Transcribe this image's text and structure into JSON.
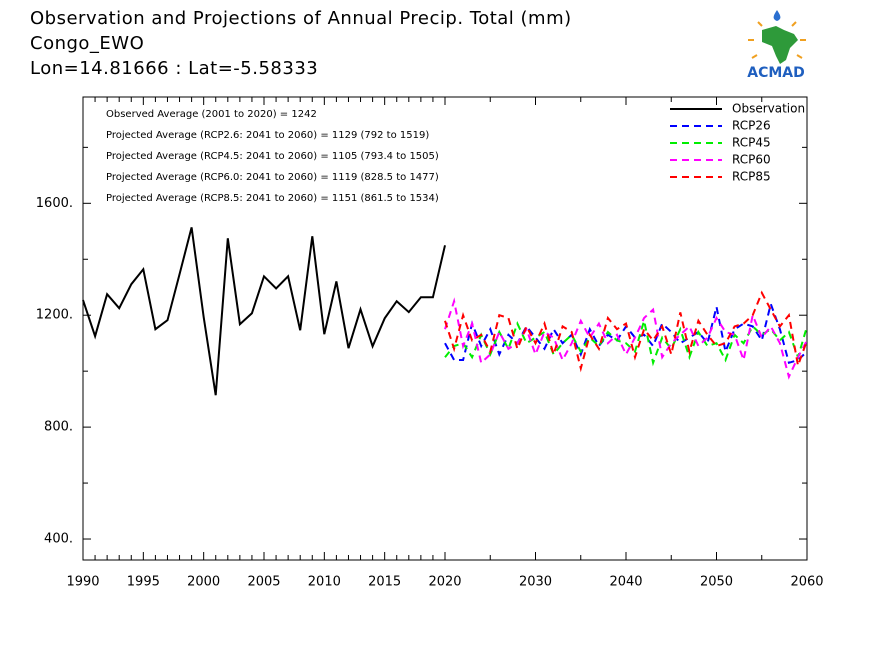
{
  "chart_data": {
    "type": "line",
    "title": [
      "Observation and Projections of Annual Precip. Total (mm)",
      "Congo_EWO",
      "Lon=14.81666 : Lat=-5.58333"
    ],
    "logo_text": "ACMAD",
    "annotations": [
      "Observed Average (2001 to 2020) = 1242",
      "Projected Average (RCP2.6: 2041 to 2060) = 1129 (792 to 1519)",
      "Projected Average (RCP4.5: 2041 to 2060) = 1105 (793.4 to 1505)",
      "Projected Average (RCP6.0: 2041 to 2060) = 1119 (828.5 to 1477)",
      "Projected Average (RCP8.5: 2041 to 2060) = 1151 (861.5 to 1534)"
    ],
    "xlim": [
      1990,
      2060
    ],
    "xticks": [
      1990,
      1995,
      2000,
      2005,
      2010,
      2015,
      2020,
      2030,
      2040,
      2050,
      2060
    ],
    "xminor": [
      1991,
      1992,
      1993,
      1994,
      1996,
      1997,
      1998,
      1999,
      2001,
      2002,
      2003,
      2004,
      2006,
      2007,
      2008,
      2009,
      2011,
      2012,
      2013,
      2014,
      2016,
      2017,
      2018,
      2019,
      2025,
      2035,
      2045,
      2055
    ],
    "ylim": [
      325,
      1980
    ],
    "yticks": [
      {
        "value": 400,
        "label": "400."
      },
      {
        "value": 800,
        "label": "800."
      },
      {
        "value": 1200,
        "label": "1200."
      },
      {
        "value": 1600,
        "label": "1600."
      }
    ],
    "yminor": [
      600,
      1000,
      1400,
      1800
    ],
    "legend": "top-right",
    "series": [
      {
        "name": "Observation",
        "color": "#000000",
        "dashed": false,
        "x": [
          1990,
          1991,
          1992,
          1993,
          1994,
          1995,
          1996,
          1997,
          1998,
          1999,
          2000,
          2001,
          2002,
          2003,
          2004,
          2005,
          2006,
          2007,
          2008,
          2009,
          2010,
          2011,
          2012,
          2013,
          2014,
          2015,
          2016,
          2017,
          2018,
          2019,
          2020
        ],
        "values": [
          1254,
          1125,
          1275,
          1225,
          1311,
          1364,
          1150,
          1182,
          1346,
          1514,
          1193,
          914,
          1475,
          1168,
          1207,
          1339,
          1296,
          1339,
          1146,
          1482,
          1132,
          1321,
          1082,
          1221,
          1089,
          1189,
          1250,
          1211,
          1264,
          1264,
          1450
        ]
      },
      {
        "name": "RCP26",
        "color": "#0000ff",
        "dashed": true,
        "x": [
          2020,
          2021,
          2022,
          2023,
          2024,
          2025,
          2026,
          2027,
          2028,
          2029,
          2030,
          2031,
          2032,
          2033,
          2034,
          2035,
          2036,
          2037,
          2038,
          2039,
          2040,
          2041,
          2042,
          2043,
          2044,
          2045,
          2046,
          2047,
          2048,
          2049,
          2050,
          2051,
          2052,
          2053,
          2054,
          2055,
          2056,
          2057,
          2058,
          2059,
          2060
        ],
        "values": [
          1100,
          1040,
          1040,
          1170,
          1090,
          1150,
          1060,
          1130,
          1100,
          1160,
          1120,
          1080,
          1150,
          1100,
          1130,
          1060,
          1150,
          1090,
          1130,
          1110,
          1160,
          1120,
          1130,
          1090,
          1170,
          1140,
          1100,
          1120,
          1140,
          1100,
          1230,
          1070,
          1150,
          1170,
          1160,
          1110,
          1240,
          1150,
          1030,
          1040,
          1070
        ]
      },
      {
        "name": "RCP45",
        "color": "#00ee00",
        "dashed": true,
        "x": [
          2020,
          2021,
          2022,
          2023,
          2024,
          2025,
          2026,
          2027,
          2028,
          2029,
          2030,
          2031,
          2032,
          2033,
          2034,
          2035,
          2036,
          2037,
          2038,
          2039,
          2040,
          2041,
          2042,
          2043,
          2044,
          2045,
          2046,
          2047,
          2048,
          2049,
          2050,
          2051,
          2052,
          2053,
          2054,
          2055,
          2056,
          2057,
          2058,
          2059,
          2060
        ],
        "values": [
          1050,
          1090,
          1100,
          1050,
          1130,
          1060,
          1140,
          1080,
          1170,
          1100,
          1120,
          1140,
          1060,
          1100,
          1130,
          1070,
          1120,
          1090,
          1140,
          1110,
          1100,
          1070,
          1180,
          1030,
          1120,
          1080,
          1150,
          1050,
          1140,
          1090,
          1100,
          1040,
          1130,
          1100,
          1160,
          1130,
          1150,
          1110,
          1140,
          1050,
          1160
        ]
      },
      {
        "name": "RCP60",
        "color": "#ff00ff",
        "dashed": true,
        "x": [
          2020,
          2021,
          2022,
          2023,
          2024,
          2025,
          2026,
          2027,
          2028,
          2029,
          2030,
          2031,
          2032,
          2033,
          2034,
          2035,
          2036,
          2037,
          2038,
          2039,
          2040,
          2041,
          2042,
          2043,
          2044,
          2045,
          2046,
          2047,
          2048,
          2049,
          2050,
          2051,
          2052,
          2053,
          2054,
          2055,
          2056,
          2057,
          2058,
          2059,
          2060
        ],
        "values": [
          1150,
          1250,
          1090,
          1170,
          1030,
          1060,
          1140,
          1080,
          1100,
          1150,
          1060,
          1140,
          1120,
          1040,
          1100,
          1180,
          1120,
          1170,
          1100,
          1130,
          1060,
          1120,
          1190,
          1220,
          1050,
          1100,
          1130,
          1160,
          1090,
          1120,
          1190,
          1140,
          1130,
          1040,
          1200,
          1120,
          1160,
          1100,
          980,
          1050,
          1110
        ]
      },
      {
        "name": "RCP85",
        "color": "#ff0000",
        "dashed": true,
        "x": [
          2020,
          2021,
          2022,
          2023,
          2024,
          2025,
          2026,
          2027,
          2028,
          2029,
          2030,
          2031,
          2032,
          2033,
          2034,
          2035,
          2036,
          2037,
          2038,
          2039,
          2040,
          2041,
          2042,
          2043,
          2044,
          2045,
          2046,
          2047,
          2048,
          2049,
          2050,
          2051,
          2052,
          2053,
          2054,
          2055,
          2056,
          2057,
          2058,
          2059,
          2060
        ],
        "values": [
          1180,
          1080,
          1200,
          1110,
          1130,
          1070,
          1200,
          1190,
          1080,
          1160,
          1100,
          1170,
          1060,
          1160,
          1140,
          1010,
          1130,
          1080,
          1190,
          1150,
          1170,
          1050,
          1150,
          1110,
          1160,
          1060,
          1210,
          1070,
          1180,
          1130,
          1090,
          1100,
          1160,
          1170,
          1200,
          1280,
          1220,
          1160,
          1200,
          1020,
          1110
        ]
      }
    ]
  }
}
